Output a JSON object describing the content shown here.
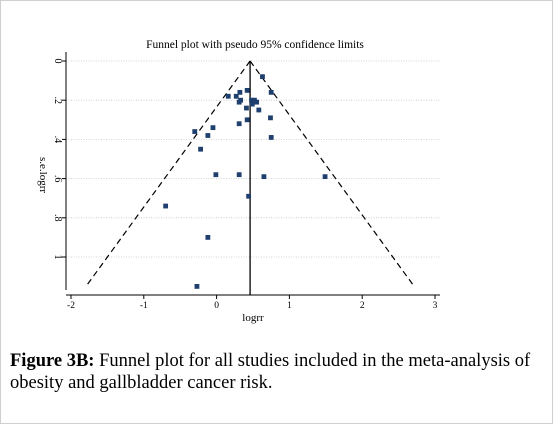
{
  "chart_data": {
    "type": "scatter",
    "title": "Funnel plot with pseudo 95% confidence limits",
    "xlabel": "logrr",
    "ylabel": "s.e.logrr",
    "xlim": [
      -2,
      3
    ],
    "ylim": [
      0,
      1.15
    ],
    "y_inverted": true,
    "x_ticks": [
      "-2",
      "-1",
      "0",
      "1",
      "2",
      "3"
    ],
    "y_ticks": [
      "0",
      ".2",
      ".4",
      ".6",
      ".8",
      "1"
    ],
    "grid": true,
    "pooled_estimate": 0.46,
    "confidence_limits": "pseudo 95%",
    "points": [
      {
        "x": 0.63,
        "y": 0.08
      },
      {
        "x": 0.75,
        "y": 0.16
      },
      {
        "x": 0.42,
        "y": 0.15
      },
      {
        "x": 0.32,
        "y": 0.16
      },
      {
        "x": 0.16,
        "y": 0.18
      },
      {
        "x": 0.27,
        "y": 0.18
      },
      {
        "x": 0.33,
        "y": 0.2
      },
      {
        "x": 0.31,
        "y": 0.21
      },
      {
        "x": 0.48,
        "y": 0.2
      },
      {
        "x": 0.52,
        "y": 0.2
      },
      {
        "x": 0.55,
        "y": 0.21
      },
      {
        "x": 0.49,
        "y": 0.22
      },
      {
        "x": 0.41,
        "y": 0.24
      },
      {
        "x": 0.58,
        "y": 0.25
      },
      {
        "x": 0.74,
        "y": 0.29
      },
      {
        "x": 0.42,
        "y": 0.3
      },
      {
        "x": 0.31,
        "y": 0.32
      },
      {
        "x": -0.05,
        "y": 0.34
      },
      {
        "x": -0.3,
        "y": 0.36
      },
      {
        "x": -0.12,
        "y": 0.38
      },
      {
        "x": 0.75,
        "y": 0.39
      },
      {
        "x": -0.22,
        "y": 0.45
      },
      {
        "x": -0.01,
        "y": 0.58
      },
      {
        "x": 0.31,
        "y": 0.58
      },
      {
        "x": 0.65,
        "y": 0.59
      },
      {
        "x": 1.49,
        "y": 0.59
      },
      {
        "x": 0.44,
        "y": 0.69
      },
      {
        "x": -0.7,
        "y": 0.74
      },
      {
        "x": -0.12,
        "y": 0.9
      },
      {
        "x": -0.27,
        "y": 1.15
      }
    ]
  },
  "caption": {
    "label": "Figure 3B:",
    "text": " Funnel plot for all studies included in the meta-analysis of obesity and gallbladder cancer risk."
  },
  "colors": {
    "marker": "#1f3f6e",
    "axis": "#000000",
    "grid": "#c8c8c8",
    "ci_line": "#000000"
  }
}
